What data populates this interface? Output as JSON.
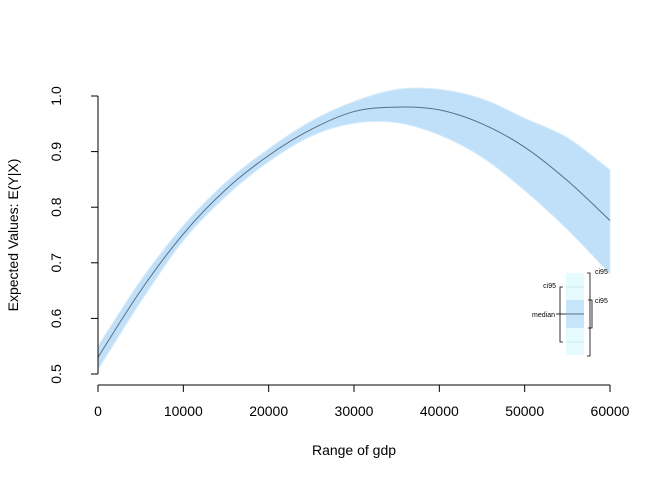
{
  "chart_data": {
    "type": "line",
    "title": "",
    "xlabel": "Range of gdp",
    "ylabel": "Expected Values: E(Y|X)",
    "xlim": [
      0,
      60000
    ],
    "ylim": [
      0.5,
      1.0
    ],
    "x_ticks": [
      0,
      10000,
      20000,
      30000,
      40000,
      50000,
      60000
    ],
    "x_tick_labels": [
      "0",
      "10000",
      "20000",
      "30000",
      "40000",
      "50000",
      "60000"
    ],
    "y_ticks": [
      0.5,
      0.6,
      0.7,
      0.8,
      0.9,
      1.0
    ],
    "y_tick_labels": [
      "0.5",
      "0.6",
      "0.7",
      "0.8",
      "0.9",
      "1.0"
    ],
    "grid": false,
    "legend_position": "bottom-right",
    "colors": {
      "line": "#5b6e85",
      "band": "#bfe0f8",
      "legend_outer": "#e6fbfd",
      "legend_inner": "#c6e5fb"
    },
    "x": [
      0,
      5000,
      10000,
      15000,
      20000,
      25000,
      30000,
      35000,
      40000,
      45000,
      50000,
      55000,
      60000
    ],
    "median": [
      0.53,
      0.65,
      0.752,
      0.832,
      0.893,
      0.94,
      0.972,
      0.98,
      0.975,
      0.95,
      0.908,
      0.848,
      0.776
    ],
    "lower": [
      0.508,
      0.63,
      0.74,
      0.82,
      0.882,
      0.928,
      0.951,
      0.952,
      0.93,
      0.89,
      0.83,
      0.76,
      0.68
    ],
    "upper": [
      0.55,
      0.668,
      0.767,
      0.845,
      0.905,
      0.955,
      0.99,
      1.012,
      1.012,
      0.995,
      0.96,
      0.925,
      0.867
    ],
    "legend": {
      "ci_outer_label": "ci95",
      "ci_inner_label": "ci95",
      "ci_left_label": "ci95",
      "median_label": "median"
    }
  }
}
